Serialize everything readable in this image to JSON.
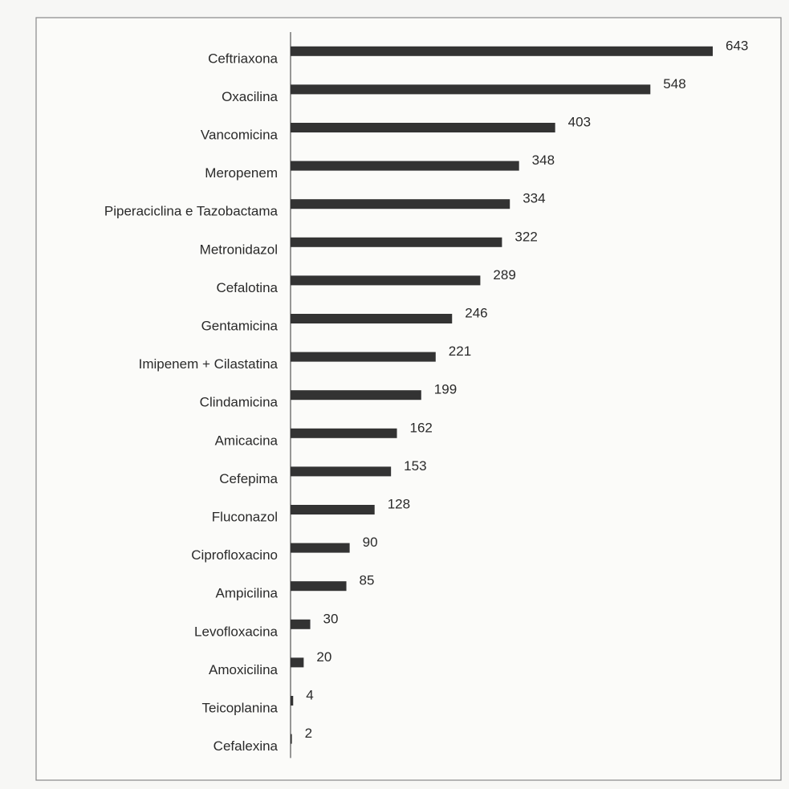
{
  "chart_data": {
    "type": "bar",
    "orientation": "horizontal",
    "color": "#333333",
    "categories": [
      "Ceftriaxona",
      "Oxacilina",
      "Vancomicina",
      "Meropenem",
      "Piperaciclina e Tazobactama",
      "Metronidazol",
      "Cefalotina",
      "Gentamicina",
      "Imipenem + Cilastatina",
      "Clindamicina",
      "Amicacina",
      "Cefepima",
      "Fluconazol",
      "Ciprofloxacino",
      "Ampicilina",
      "Levofloxacina",
      "Amoxicilina",
      "Teicoplanina",
      "Cefalexina"
    ],
    "values": [
      643,
      548,
      403,
      348,
      334,
      322,
      289,
      246,
      221,
      199,
      162,
      153,
      128,
      90,
      85,
      30,
      20,
      4,
      2
    ]
  }
}
